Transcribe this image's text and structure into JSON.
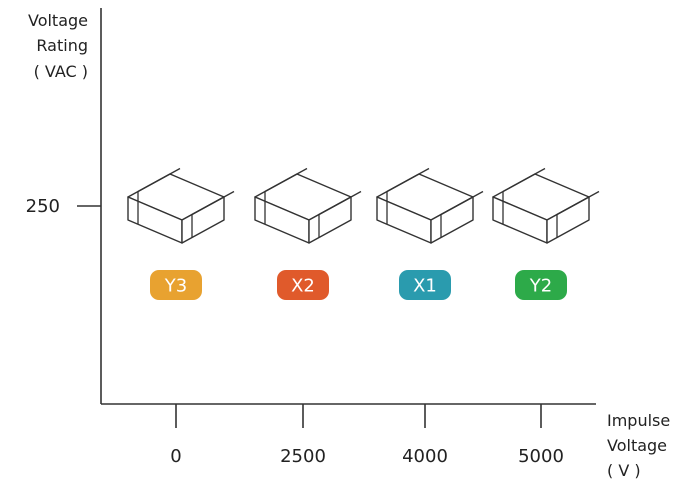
{
  "chart_data": {
    "type": "scatter",
    "ylabel": [
      "Voltage",
      "Rating",
      "( VAC )"
    ],
    "xlabel": [
      "Impulse",
      "Voltage",
      "( V )"
    ],
    "x_ticks": [
      "0",
      "2500",
      "4000",
      "5000"
    ],
    "y_ticks": [
      "250"
    ],
    "series": [
      {
        "name": "Y3",
        "x": "0",
        "y": 250,
        "color": "#E8A230"
      },
      {
        "name": "X2",
        "x": "2500",
        "y": 250,
        "color": "#E05A2B"
      },
      {
        "name": "X1",
        "x": "4000",
        "y": 250,
        "color": "#2A9BAE"
      },
      {
        "name": "Y2",
        "x": "5000",
        "y": 250,
        "color": "#2DAA49"
      }
    ],
    "marker_icon": "chip-capacitor-icon",
    "grid": false
  }
}
